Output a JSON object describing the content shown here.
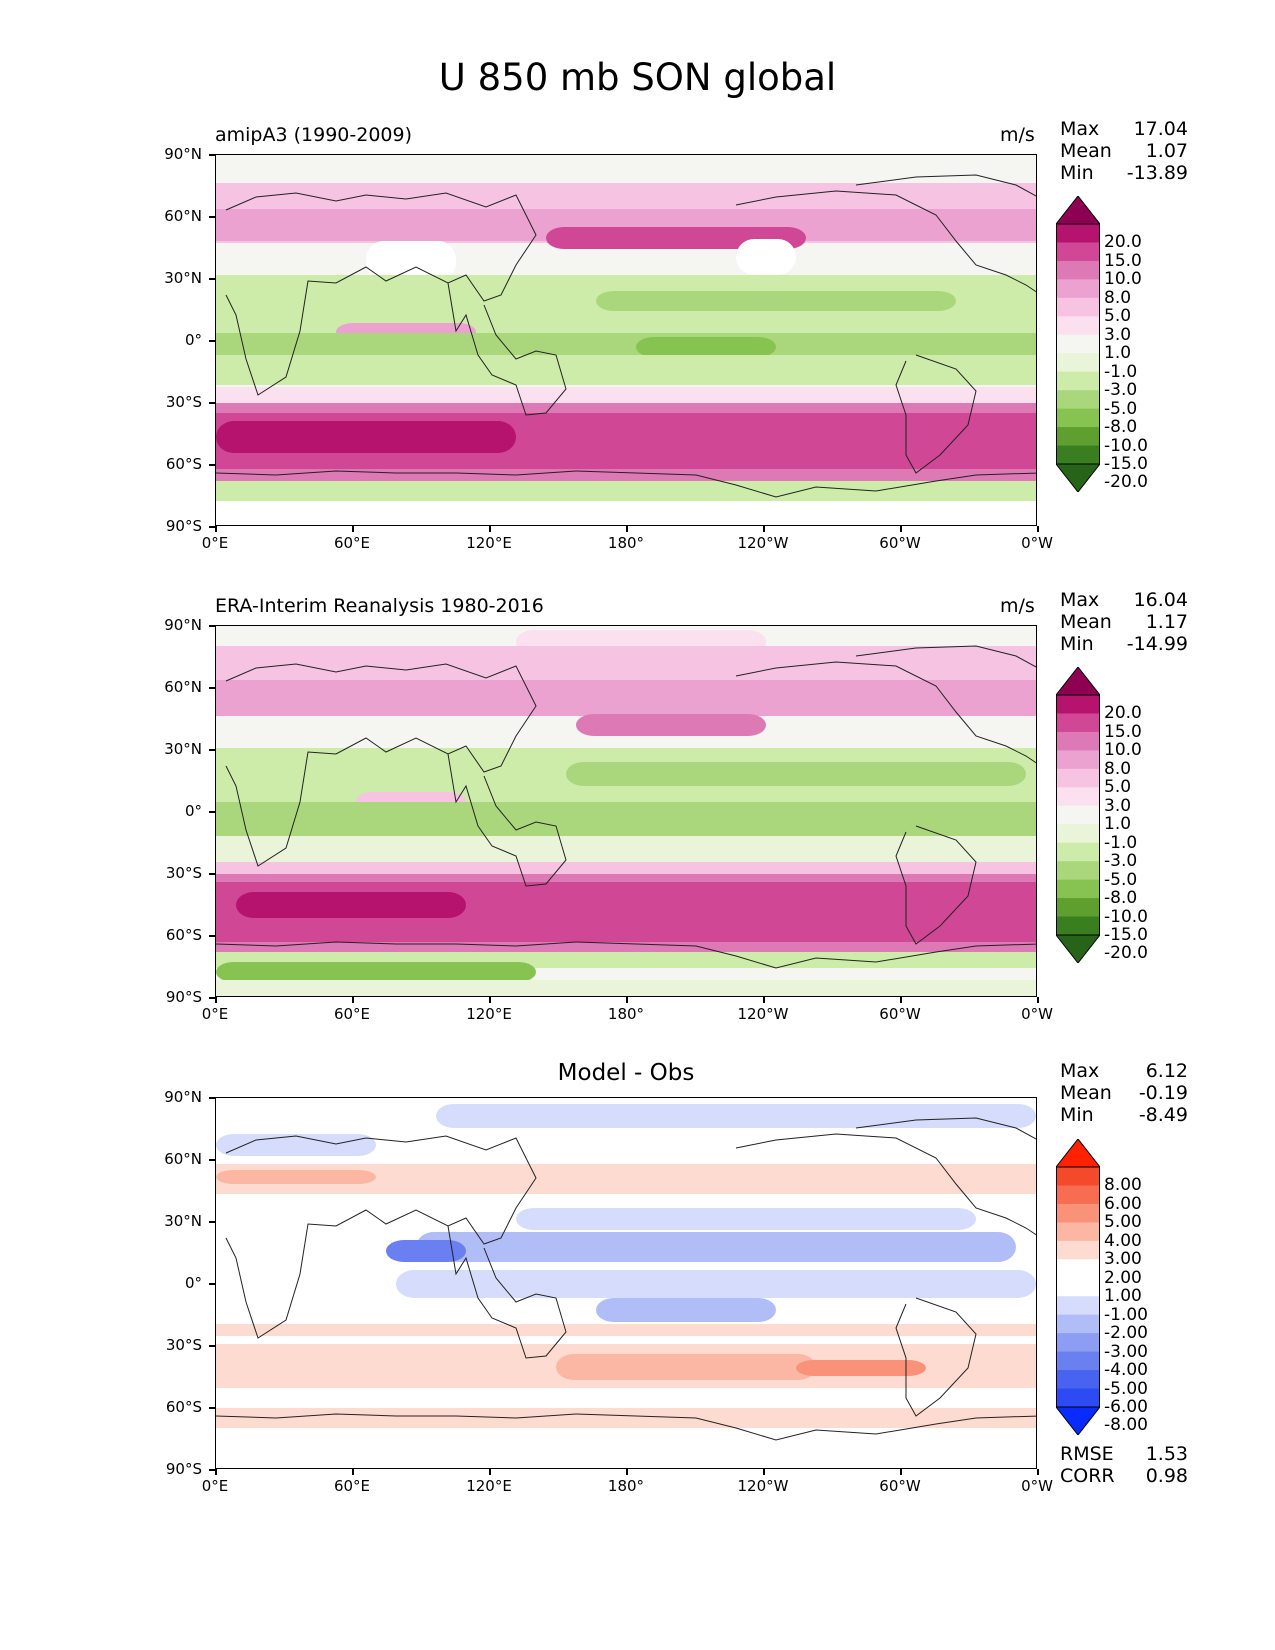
{
  "figure": {
    "title": "U 850 mb SON global"
  },
  "x_ticks": [
    "0°E",
    "60°E",
    "120°E",
    "180°",
    "120°W",
    "60°W",
    "0°W"
  ],
  "y_ticks": [
    "90°N",
    "60°N",
    "30°N",
    "0°",
    "30°S",
    "60°S",
    "90°S"
  ],
  "panels": [
    {
      "id": "model",
      "left_title": "amipA3 (1990-2009)",
      "center_title": "",
      "units": "m/s",
      "stats": [
        {
          "label": "Max",
          "value": "17.04"
        },
        {
          "label": "Mean",
          "value": "1.07"
        },
        {
          "label": "Min",
          "value": "-13.89"
        }
      ],
      "colorbar_labels": [
        "20.0",
        "15.0",
        "10.0",
        "8.0",
        "5.0",
        "3.0",
        "1.0",
        "-1.0",
        "-3.0",
        "-5.0",
        "-8.0",
        "-10.0",
        "-15.0",
        "-20.0"
      ]
    },
    {
      "id": "obs",
      "left_title": "ERA-Interim Reanalysis 1980-2016",
      "center_title": "",
      "units": "m/s",
      "stats": [
        {
          "label": "Max",
          "value": "16.04"
        },
        {
          "label": "Mean",
          "value": "1.17"
        },
        {
          "label": "Min",
          "value": "-14.99"
        }
      ],
      "colorbar_labels": [
        "20.0",
        "15.0",
        "10.0",
        "8.0",
        "5.0",
        "3.0",
        "1.0",
        "-1.0",
        "-3.0",
        "-5.0",
        "-8.0",
        "-10.0",
        "-15.0",
        "-20.0"
      ]
    },
    {
      "id": "diff",
      "left_title": "",
      "center_title": "Model - Obs",
      "units": "",
      "stats": [
        {
          "label": "Max",
          "value": "6.12"
        },
        {
          "label": "Mean",
          "value": "-0.19"
        },
        {
          "label": "Min",
          "value": "-8.49"
        }
      ],
      "colorbar_labels": [
        "8.00",
        "6.00",
        "5.00",
        "4.00",
        "3.00",
        "2.00",
        "1.00",
        "-1.00",
        "-2.00",
        "-3.00",
        "-4.00",
        "-5.00",
        "-6.00",
        "-8.00"
      ],
      "extra_stats": [
        {
          "label": "RMSE",
          "value": "1.53"
        },
        {
          "label": "CORR",
          "value": "0.98"
        }
      ]
    }
  ],
  "colors": {
    "piyg": [
      "#8e0152",
      "#b5136e",
      "#cf4795",
      "#dd79b5",
      "#eca2d0",
      "#f6c3e2",
      "#fbe1ef",
      "#f5f5f2",
      "#e9f4d8",
      "#cdeba9",
      "#abd77c",
      "#87c351",
      "#5e9f2f",
      "#3a7f1f",
      "#276419"
    ],
    "rdbu": [
      "#ff2200",
      "#f5492b",
      "#f76d52",
      "#f99279",
      "#fbb7a3",
      "#fddbd0",
      "#ffffff",
      "#ffffff",
      "#d6dcfb",
      "#b1bdf7",
      "#8c9df3",
      "#6a80f0",
      "#4863ef",
      "#2c4bf2",
      "#0a2bff"
    ]
  }
}
